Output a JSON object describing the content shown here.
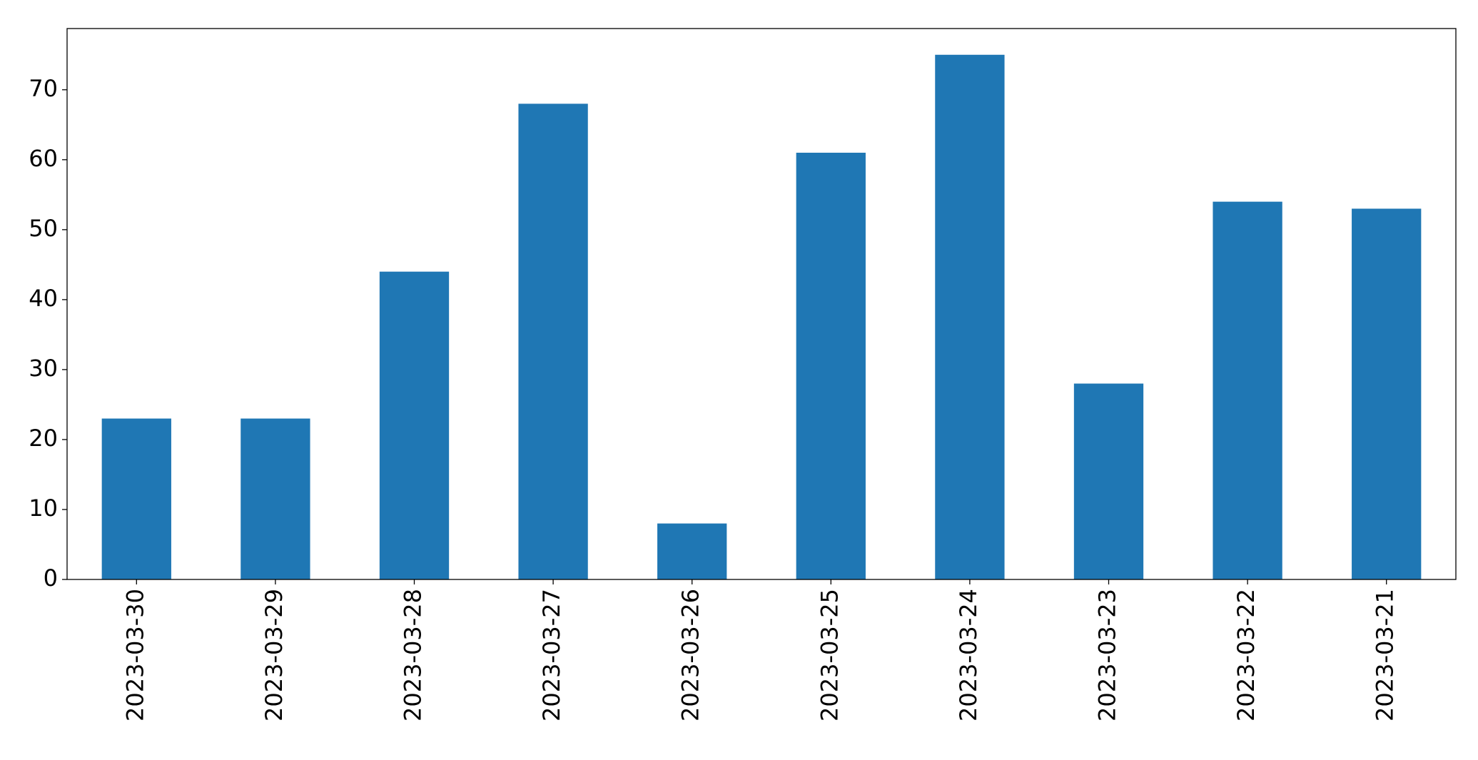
{
  "chart_data": {
    "type": "bar",
    "categories": [
      "2023-03-30",
      "2023-03-29",
      "2023-03-28",
      "2023-03-27",
      "2023-03-26",
      "2023-03-25",
      "2023-03-24",
      "2023-03-23",
      "2023-03-22",
      "2023-03-21"
    ],
    "values": [
      23,
      23,
      44,
      68,
      8,
      61,
      75,
      28,
      54,
      53
    ],
    "color": "#1f77b4",
    "ylim": [
      0,
      78.75
    ],
    "yticks": [
      0,
      10,
      20,
      30,
      40,
      50,
      60,
      70
    ],
    "grid": false
  }
}
